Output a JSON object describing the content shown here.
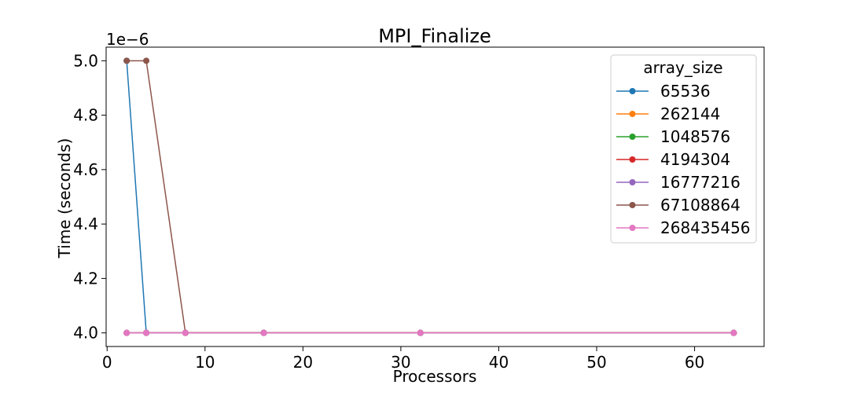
{
  "chart_data": {
    "type": "line",
    "title": "MPI_Finalize",
    "xlabel": "Processors",
    "ylabel": "Time (seconds)",
    "y_offset_label": "1e−6",
    "y_scale_factor": 1e-06,
    "xlim": [
      -0.1,
      67.1
    ],
    "ylim": [
      3.95,
      5.05
    ],
    "x_ticks": [
      0,
      10,
      20,
      30,
      40,
      50,
      60
    ],
    "y_ticks": [
      4.0,
      4.2,
      4.4,
      4.6,
      4.8,
      5.0
    ],
    "x_tick_labels": [
      "0",
      "10",
      "20",
      "30",
      "40",
      "50",
      "60"
    ],
    "y_tick_labels": [
      "4.0",
      "4.2",
      "4.4",
      "4.6",
      "4.8",
      "5.0"
    ],
    "grid": false,
    "legend": {
      "title": "array_size",
      "placement": "top-right"
    },
    "x": [
      2,
      4,
      8,
      16,
      32,
      64
    ],
    "series": [
      {
        "name": "65536",
        "color": "#1f77b4",
        "values": [
          5.0,
          4.0,
          4.0,
          4.0,
          4.0,
          4.0
        ]
      },
      {
        "name": "262144",
        "color": "#ff7f0e",
        "values": [
          4.0,
          4.0,
          4.0,
          4.0,
          4.0,
          4.0
        ]
      },
      {
        "name": "1048576",
        "color": "#2ca02c",
        "values": [
          4.0,
          4.0,
          4.0,
          4.0,
          4.0,
          4.0
        ]
      },
      {
        "name": "4194304",
        "color": "#d62728",
        "values": [
          4.0,
          4.0,
          4.0,
          4.0,
          4.0,
          4.0
        ]
      },
      {
        "name": "16777216",
        "color": "#9467bd",
        "values": [
          4.0,
          4.0,
          4.0,
          4.0,
          4.0,
          4.0
        ]
      },
      {
        "name": "67108864",
        "color": "#8c564b",
        "values": [
          5.0,
          5.0,
          4.0,
          4.0,
          4.0,
          4.0
        ]
      },
      {
        "name": "268435456",
        "color": "#e377c2",
        "values": [
          4.0,
          4.0,
          4.0,
          4.0,
          4.0,
          4.0
        ]
      }
    ]
  }
}
